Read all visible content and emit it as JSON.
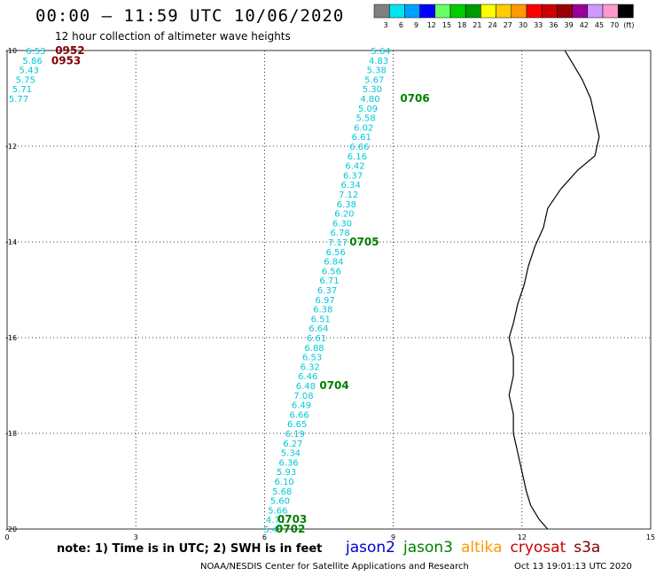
{
  "header": {
    "title": "00:00 – 11:59 UTC 10/06/2020",
    "subtitle": "12 hour collection of altimeter wave heights"
  },
  "colorbar": {
    "unit": "(ft)",
    "bins": [
      {
        "label": "3",
        "color": "#808080"
      },
      {
        "label": "6",
        "color": "#00e5ee"
      },
      {
        "label": "9",
        "color": "#00a0ff"
      },
      {
        "label": "12",
        "color": "#0000ff"
      },
      {
        "label": "15",
        "color": "#66ff66"
      },
      {
        "label": "18",
        "color": "#00cc00"
      },
      {
        "label": "21",
        "color": "#009900"
      },
      {
        "label": "24",
        "color": "#ffff00"
      },
      {
        "label": "27",
        "color": "#ffcc00"
      },
      {
        "label": "30",
        "color": "#ff9900"
      },
      {
        "label": "33",
        "color": "#ff0000"
      },
      {
        "label": "36",
        "color": "#cc0000"
      },
      {
        "label": "39",
        "color": "#990000"
      },
      {
        "label": "42",
        "color": "#990099"
      },
      {
        "label": "45",
        "color": "#cc99ff"
      },
      {
        "label": "70",
        "color": "#ff99cc"
      },
      {
        "label": "",
        "color": "#000000"
      }
    ]
  },
  "axes": {
    "x_ticks": [
      "0",
      "3",
      "6",
      "9",
      "12",
      "15"
    ],
    "y_ticks": [
      "-10",
      "-12",
      "-14",
      "-16",
      "-18",
      "-20"
    ]
  },
  "colors": {
    "swh_text": "#00c8d8",
    "jason3_time": "#008000",
    "cryosat_time": "#800000",
    "coast": "#000000",
    "grid": "#000000"
  },
  "map_data": {
    "lon_range": [
      0,
      15
    ],
    "lat_range": [
      -20,
      -10
    ],
    "tracks": [
      {
        "satellite": "cryosat",
        "color": "cyan",
        "points": [
          {
            "lon": 0.9,
            "lat": -10.0,
            "swh": "6.53"
          },
          {
            "lon": 0.82,
            "lat": -10.2,
            "swh": "5.86"
          },
          {
            "lon": 0.74,
            "lat": -10.4,
            "swh": "5.43"
          },
          {
            "lon": 0.66,
            "lat": -10.6,
            "swh": "5.75"
          },
          {
            "lon": 0.58,
            "lat": -10.8,
            "swh": "5.71"
          },
          {
            "lon": 0.5,
            "lat": -11.0,
            "swh": "5.77"
          }
        ],
        "time_labels": [
          {
            "lon": 1.12,
            "lat": -10.0,
            "text": "0952"
          },
          {
            "lon": 1.03,
            "lat": -10.21,
            "text": "0953"
          }
        ]
      },
      {
        "satellite": "jason3",
        "points": [
          {
            "lon": 8.94,
            "lat": -10.0,
            "swh": "5.64"
          },
          {
            "lon": 8.89,
            "lat": -10.2,
            "swh": "4.83"
          },
          {
            "lon": 8.84,
            "lat": -10.4,
            "swh": "5.38"
          },
          {
            "lon": 8.79,
            "lat": -10.6,
            "swh": "5.67"
          },
          {
            "lon": 8.74,
            "lat": -10.8,
            "swh": "5.30"
          },
          {
            "lon": 8.69,
            "lat": -11.0,
            "swh": "4.80"
          },
          {
            "lon": 8.64,
            "lat": -11.2,
            "swh": "5.09"
          },
          {
            "lon": 8.59,
            "lat": -11.4,
            "swh": "5.58"
          },
          {
            "lon": 8.54,
            "lat": -11.6,
            "swh": "6.02"
          },
          {
            "lon": 8.49,
            "lat": -11.8,
            "swh": "6.61"
          },
          {
            "lon": 8.44,
            "lat": -12.0,
            "swh": "6.66"
          },
          {
            "lon": 8.39,
            "lat": -12.2,
            "swh": "6.16"
          },
          {
            "lon": 8.34,
            "lat": -12.4,
            "swh": "6.42"
          },
          {
            "lon": 8.29,
            "lat": -12.6,
            "swh": "6.37"
          },
          {
            "lon": 8.24,
            "lat": -12.8,
            "swh": "6.34"
          },
          {
            "lon": 8.19,
            "lat": -13.0,
            "swh": "7.12"
          },
          {
            "lon": 8.14,
            "lat": -13.2,
            "swh": "6.38"
          },
          {
            "lon": 8.09,
            "lat": -13.4,
            "swh": "6.20"
          },
          {
            "lon": 8.04,
            "lat": -13.6,
            "swh": "6.30"
          },
          {
            "lon": 7.99,
            "lat": -13.8,
            "swh": "6.78"
          },
          {
            "lon": 7.94,
            "lat": -14.0,
            "swh": "7.17"
          },
          {
            "lon": 7.89,
            "lat": -14.2,
            "swh": "6.56"
          },
          {
            "lon": 7.84,
            "lat": -14.4,
            "swh": "6.84"
          },
          {
            "lon": 7.79,
            "lat": -14.6,
            "swh": "6.56"
          },
          {
            "lon": 7.74,
            "lat": -14.8,
            "swh": "6.71"
          },
          {
            "lon": 7.69,
            "lat": -15.0,
            "swh": "6.37"
          },
          {
            "lon": 7.64,
            "lat": -15.2,
            "swh": "6.97"
          },
          {
            "lon": 7.59,
            "lat": -15.4,
            "swh": "6.38"
          },
          {
            "lon": 7.54,
            "lat": -15.6,
            "swh": "6.51"
          },
          {
            "lon": 7.49,
            "lat": -15.8,
            "swh": "6.64"
          },
          {
            "lon": 7.44,
            "lat": -16.0,
            "swh": "6.61"
          },
          {
            "lon": 7.39,
            "lat": -16.2,
            "swh": "6.88"
          },
          {
            "lon": 7.34,
            "lat": -16.4,
            "swh": "6.53"
          },
          {
            "lon": 7.29,
            "lat": -16.6,
            "swh": "6.32"
          },
          {
            "lon": 7.24,
            "lat": -16.8,
            "swh": "6.46"
          },
          {
            "lon": 7.19,
            "lat": -17.0,
            "swh": "6.48"
          },
          {
            "lon": 7.14,
            "lat": -17.2,
            "swh": "7.08"
          },
          {
            "lon": 7.09,
            "lat": -17.4,
            "swh": "6.49"
          },
          {
            "lon": 7.04,
            "lat": -17.6,
            "swh": "6.66"
          },
          {
            "lon": 6.99,
            "lat": -17.8,
            "swh": "6.65"
          },
          {
            "lon": 6.94,
            "lat": -18.0,
            "swh": "6.19"
          },
          {
            "lon": 6.89,
            "lat": -18.2,
            "swh": "6.27"
          },
          {
            "lon": 6.84,
            "lat": -18.4,
            "swh": "5.34"
          },
          {
            "lon": 6.79,
            "lat": -18.6,
            "swh": "6.36"
          },
          {
            "lon": 6.74,
            "lat": -18.8,
            "swh": "5.93"
          },
          {
            "lon": 6.69,
            "lat": -19.0,
            "swh": "6.10"
          },
          {
            "lon": 6.64,
            "lat": -19.2,
            "swh": "5.68"
          },
          {
            "lon": 6.59,
            "lat": -19.4,
            "swh": "5.60"
          },
          {
            "lon": 6.54,
            "lat": -19.6,
            "swh": "5.66"
          },
          {
            "lon": 6.49,
            "lat": -19.8,
            "swh": "4.71"
          },
          {
            "lon": 6.44,
            "lat": -20.0,
            "swh": "5.47"
          }
        ],
        "time_labels": [
          {
            "lon": 9.16,
            "lat": -11.0,
            "text": "0706"
          },
          {
            "lon": 7.98,
            "lat": -14.0,
            "text": "0705"
          },
          {
            "lon": 7.28,
            "lat": -17.0,
            "text": "0704"
          },
          {
            "lon": 6.3,
            "lat": -19.8,
            "text": "0703"
          },
          {
            "lon": 6.26,
            "lat": -20.0,
            "text": "0702"
          }
        ]
      }
    ],
    "coastline": [
      [
        13.0,
        -10.0
      ],
      [
        13.2,
        -10.3
      ],
      [
        13.4,
        -10.6
      ],
      [
        13.6,
        -11.0
      ],
      [
        13.7,
        -11.4
      ],
      [
        13.8,
        -11.8
      ],
      [
        13.7,
        -12.2
      ],
      [
        13.3,
        -12.5
      ],
      [
        12.9,
        -12.9
      ],
      [
        12.6,
        -13.3
      ],
      [
        12.5,
        -13.7
      ],
      [
        12.3,
        -14.1
      ],
      [
        12.15,
        -14.5
      ],
      [
        12.05,
        -14.9
      ],
      [
        11.9,
        -15.3
      ],
      [
        11.8,
        -15.7
      ],
      [
        11.7,
        -16.0
      ],
      [
        11.8,
        -16.4
      ],
      [
        11.8,
        -16.8
      ],
      [
        11.7,
        -17.2
      ],
      [
        11.8,
        -17.6
      ],
      [
        11.8,
        -18.0
      ],
      [
        11.9,
        -18.4
      ],
      [
        12.0,
        -18.8
      ],
      [
        12.1,
        -19.2
      ],
      [
        12.2,
        -19.5
      ],
      [
        12.4,
        -19.8
      ],
      [
        12.6,
        -20.0
      ]
    ]
  },
  "satellite_legend": [
    {
      "name": "jason2",
      "color": "#0000cc"
    },
    {
      "name": "jason3",
      "color": "#008000"
    },
    {
      "name": "altika",
      "color": "#ff9900"
    },
    {
      "name": "cryosat",
      "color": "#cc0000"
    },
    {
      "name": "s3a",
      "color": "#800000"
    }
  ],
  "footer": {
    "note": "note:  1) Time is in UTC;  2) SWH is in feet",
    "credit": "NOAA/NESDIS Center for Satellite Applications and Research",
    "stamp": "Oct 13 19:01:13 UTC 2020"
  }
}
